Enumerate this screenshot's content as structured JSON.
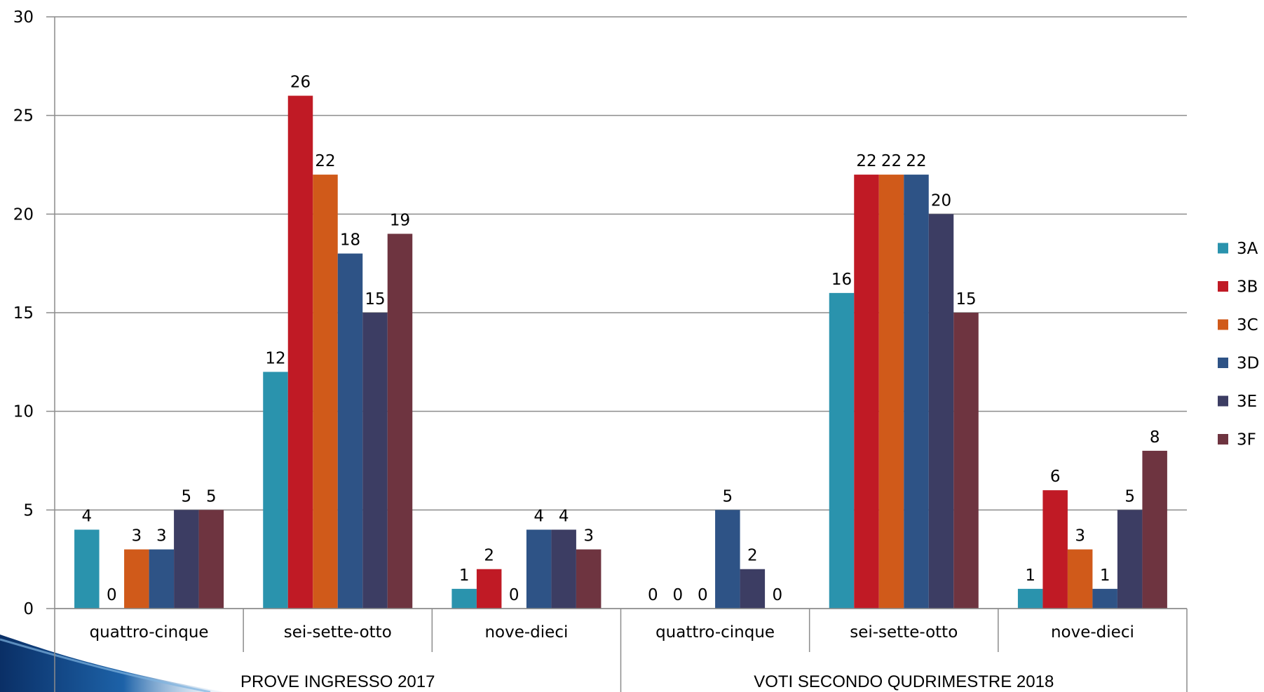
{
  "chart_data": {
    "type": "bar",
    "title": "",
    "xlabel": "",
    "ylabel": "",
    "ylim": [
      0,
      30
    ],
    "y_ticks": [
      "0",
      "5",
      "10",
      "15",
      "20",
      "25",
      "30"
    ],
    "grid": true,
    "legend_position": "right",
    "groups": [
      {
        "label": "PROVE INGRESSO 2017",
        "categories": [
          "quattro-cinque",
          "sei-sette-otto",
          "nove-dieci"
        ]
      },
      {
        "label": "VOTI SECONDO QUDRIMESTRE 2018",
        "categories": [
          "quattro-cinque",
          "sei-sette-otto",
          "nove-dieci"
        ]
      }
    ],
    "series": [
      {
        "name": "3A",
        "color": "#2a93ad",
        "values": [
          4,
          12,
          1,
          0,
          16,
          1
        ]
      },
      {
        "name": "3B",
        "color": "#c01a25",
        "values": [
          0,
          26,
          2,
          0,
          22,
          6
        ]
      },
      {
        "name": "3C",
        "color": "#d05a1a",
        "values": [
          3,
          22,
          0,
          0,
          22,
          3
        ]
      },
      {
        "name": "3D",
        "color": "#2e5386",
        "values": [
          3,
          18,
          4,
          5,
          22,
          1
        ]
      },
      {
        "name": "3E",
        "color": "#3c3d63",
        "values": [
          5,
          15,
          4,
          2,
          20,
          5
        ]
      },
      {
        "name": "3F",
        "color": "#6e3440",
        "values": [
          5,
          19,
          3,
          0,
          15,
          8
        ]
      }
    ]
  }
}
